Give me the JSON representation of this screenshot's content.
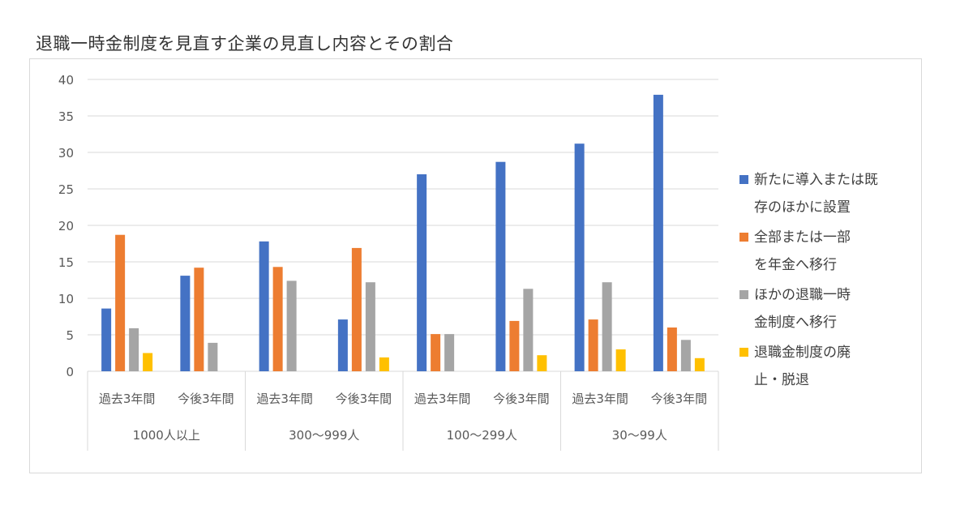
{
  "chart_data": {
    "type": "bar",
    "title": "退職一時金制度を見直す企業の見直し内容とその割合",
    "ylim": [
      0,
      40
    ],
    "yticks": [
      0,
      5,
      10,
      15,
      20,
      25,
      30,
      35,
      40
    ],
    "grid": true,
    "legend_position": "right",
    "groups": [
      {
        "label": "1000人以上",
        "categories": [
          "過去3年間",
          "今後3年間"
        ]
      },
      {
        "label": "300〜999人",
        "categories": [
          "過去3年間",
          "今後3年間"
        ]
      },
      {
        "label": "100〜299人",
        "categories": [
          "過去3年間",
          "今後3年間"
        ]
      },
      {
        "label": "30〜99人",
        "categories": [
          "過去3年間",
          "今後3年間"
        ]
      }
    ],
    "series": [
      {
        "name": "新たに導入または既存のほかに設置",
        "color": "#4472c4",
        "values": [
          8.6,
          13.1,
          17.8,
          7.1,
          27.0,
          28.7,
          31.2,
          37.9
        ]
      },
      {
        "name": "全部または一部を年金へ移行",
        "color": "#ed7d31",
        "values": [
          18.7,
          14.2,
          14.3,
          16.9,
          5.1,
          6.9,
          7.1,
          6.0
        ]
      },
      {
        "name": "ほかの退職一時金制度へ移行",
        "color": "#a5a5a5",
        "values": [
          5.9,
          3.9,
          12.4,
          12.2,
          5.1,
          11.3,
          12.2,
          4.3
        ]
      },
      {
        "name": "退職金制度の廃止・脱退",
        "color": "#ffc000",
        "values": [
          2.5,
          0,
          0,
          1.9,
          0,
          2.2,
          3.0,
          1.8
        ]
      }
    ]
  }
}
